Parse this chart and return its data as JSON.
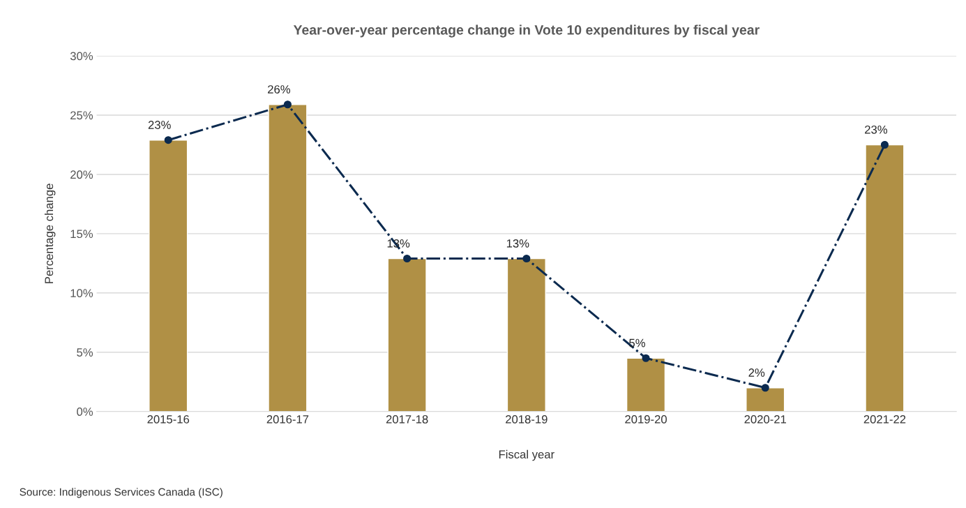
{
  "chart_data": {
    "type": "bar",
    "title": "Year-over-year percentage change in Vote 10 expenditures by fiscal year",
    "xlabel": "Fiscal year",
    "ylabel": "Percentage change",
    "categories": [
      "2015-16",
      "2016-17",
      "2017-18",
      "2018-19",
      "2019-20",
      "2020-21",
      "2021-22"
    ],
    "series": [
      {
        "color": "#b09045",
        "values": [
          22.9,
          25.9,
          12.9,
          12.9,
          4.5,
          2.0,
          22.5
        ]
      },
      {
        "type": "line",
        "color": "#0b2a4f",
        "marker": "circle",
        "line_style": "dashdot",
        "values": [
          22.9,
          25.9,
          12.9,
          12.9,
          4.5,
          2.0,
          22.5
        ],
        "value_labels": [
          "23%",
          "26%",
          "13%",
          "13%",
          "5%",
          "2%",
          "23%"
        ]
      }
    ],
    "ylim": [
      0,
      30
    ],
    "yticks": [
      {
        "value": 0,
        "label": "0%"
      },
      {
        "value": 5,
        "label": "5%"
      },
      {
        "value": 10,
        "label": "10%"
      },
      {
        "value": 15,
        "label": "15%"
      },
      {
        "value": 20,
        "label": "20%"
      },
      {
        "value": 25,
        "label": "25%"
      },
      {
        "value": 30,
        "label": "30%"
      }
    ],
    "grid": "y",
    "annotations": [
      "Source: Indigenous Services Canada (ISC)"
    ]
  }
}
